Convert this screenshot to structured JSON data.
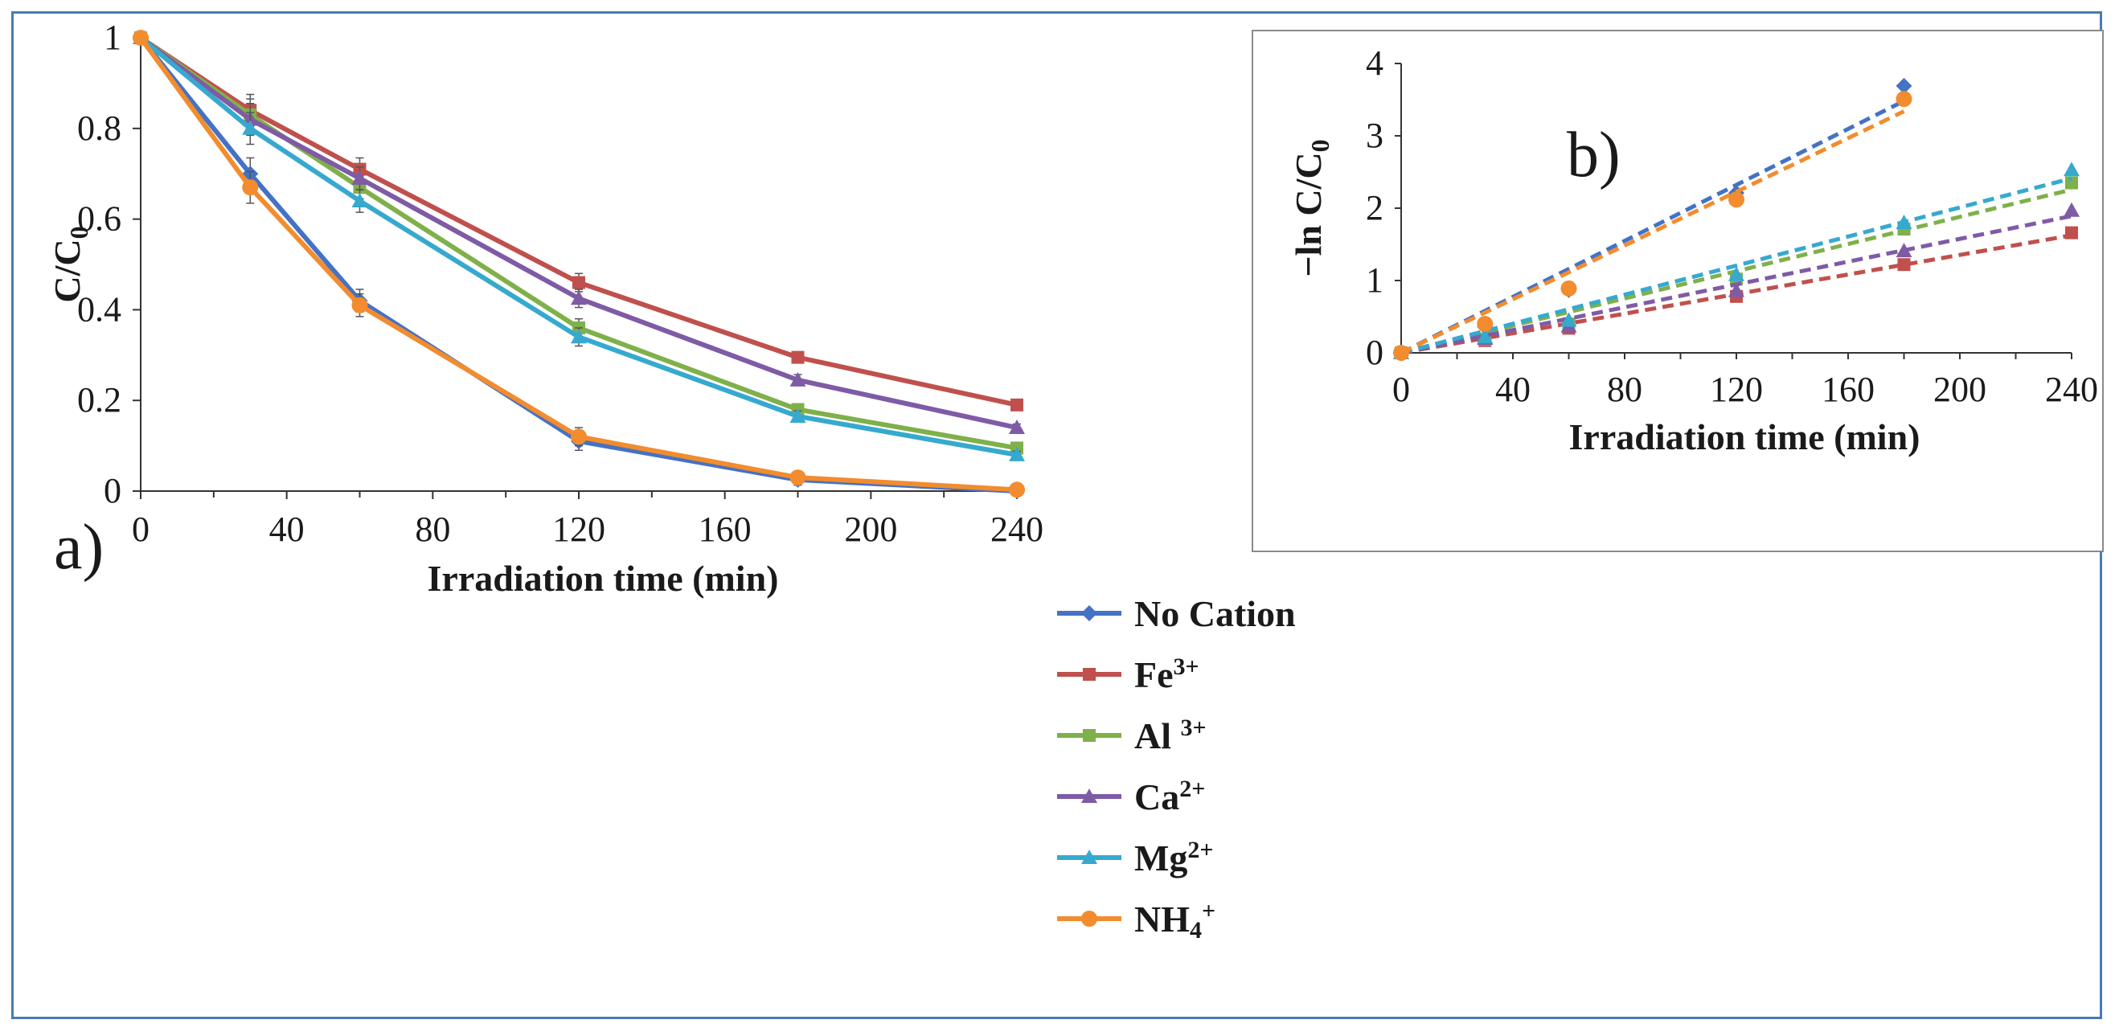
{
  "colors": {
    "No Cation": "#4472c4",
    "Fe3+": "#c0504d",
    "Al3+": "#7fb04a",
    "Ca2+": "#7f5ba6",
    "Mg2+": "#36a9cf",
    "NH4+": "#f28c2e"
  },
  "chart_data": [
    {
      "type": "line",
      "panel_label": "a)",
      "xlabel": "Irradiation time (min)",
      "ylabel": "C/C0",
      "x": [
        0,
        30,
        60,
        120,
        180,
        240
      ],
      "xlim": [
        0,
        240
      ],
      "ylim": [
        0,
        1
      ],
      "xticks": [
        "0",
        "40",
        "80",
        "120",
        "160",
        "200",
        "240"
      ],
      "yticks": [
        "0",
        "0.2",
        "0.4",
        "0.6",
        "0.8",
        "1"
      ],
      "error_bars": true,
      "legend_position": "right",
      "series": [
        {
          "name": "No Cation",
          "values": [
            1.0,
            0.7,
            0.42,
            0.11,
            0.025,
            0.0
          ]
        },
        {
          "name": "Fe3+",
          "values": [
            1.0,
            0.84,
            0.71,
            0.46,
            0.295,
            0.19
          ]
        },
        {
          "name": "Al 3+",
          "values": [
            1.0,
            0.83,
            0.67,
            0.36,
            0.18,
            0.095
          ]
        },
        {
          "name": "Ca2+",
          "values": [
            1.0,
            0.82,
            0.69,
            0.425,
            0.245,
            0.14
          ]
        },
        {
          "name": "Mg2+",
          "values": [
            1.0,
            0.8,
            0.64,
            0.34,
            0.165,
            0.08
          ]
        },
        {
          "name": "NH4+",
          "values": [
            1.0,
            0.67,
            0.41,
            0.12,
            0.03,
            0.003
          ]
        }
      ],
      "error_values": [
        0,
        0.035,
        0.025,
        0.02,
        0.012,
        0.008
      ]
    },
    {
      "type": "scatter",
      "panel_label": "b)",
      "xlabel": "Irradiation time (min)",
      "ylabel": "−ln C/C0",
      "xlim": [
        0,
        240
      ],
      "ylim": [
        0,
        4
      ],
      "xticks": [
        "0",
        "40",
        "80",
        "120",
        "160",
        "200",
        "240"
      ],
      "yticks": [
        "0",
        "1",
        "2",
        "3",
        "4"
      ],
      "trendlines": "dashed",
      "series": [
        {
          "name": "No Cation",
          "x": [
            0,
            30,
            60,
            120,
            180
          ],
          "values": [
            0,
            0.36,
            0.87,
            2.21,
            3.69
          ]
        },
        {
          "name": "Fe3+",
          "x": [
            0,
            30,
            60,
            120,
            180,
            240
          ],
          "values": [
            0,
            0.17,
            0.34,
            0.78,
            1.22,
            1.66
          ]
        },
        {
          "name": "Al 3+",
          "x": [
            0,
            30,
            60,
            120,
            180,
            240
          ],
          "values": [
            0,
            0.19,
            0.4,
            1.02,
            1.71,
            2.35
          ]
        },
        {
          "name": "Ca2+",
          "x": [
            0,
            30,
            60,
            120,
            180,
            240
          ],
          "values": [
            0,
            0.2,
            0.37,
            0.86,
            1.41,
            1.97
          ]
        },
        {
          "name": "Mg2+",
          "x": [
            0,
            30,
            60,
            120,
            180,
            240
          ],
          "values": [
            0,
            0.22,
            0.45,
            1.08,
            1.8,
            2.53
          ]
        },
        {
          "name": "NH4+",
          "x": [
            0,
            30,
            60,
            120,
            180
          ],
          "values": [
            0,
            0.4,
            0.89,
            2.12,
            3.51
          ]
        }
      ]
    }
  ],
  "legend": {
    "items": [
      {
        "key": "No Cation",
        "label": "No Cation",
        "sup": ""
      },
      {
        "key": "Fe3+",
        "label": "Fe",
        "sup": "3+"
      },
      {
        "key": "Al3+",
        "label": "Al ",
        "sup": "3+"
      },
      {
        "key": "Ca2+",
        "label": "Ca",
        "sup": "2+"
      },
      {
        "key": "Mg2+",
        "label": "Mg",
        "sup": "2+"
      },
      {
        "key": "NH4+",
        "label": "NH",
        "sub": "4",
        "sup": "+"
      }
    ]
  }
}
